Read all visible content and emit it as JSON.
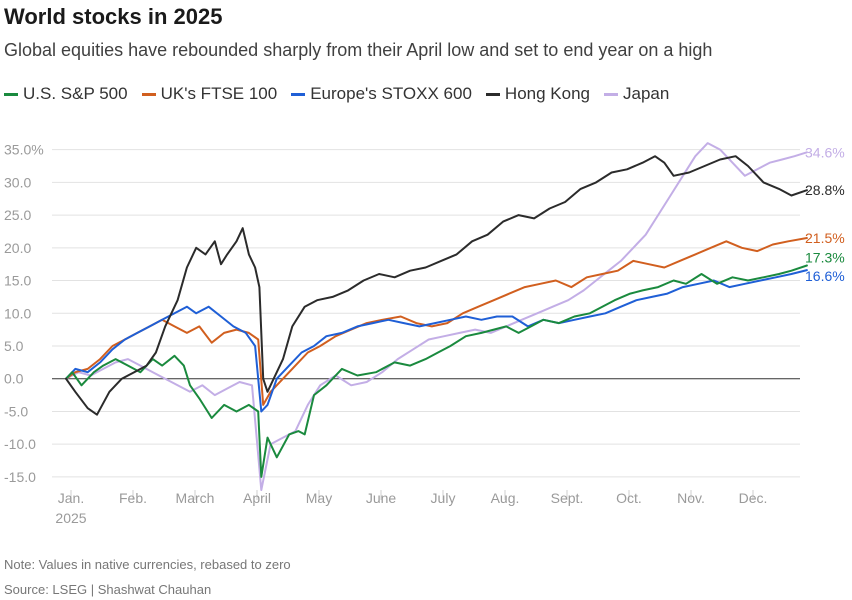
{
  "chart_data": {
    "type": "line",
    "title": "World stocks in 2025",
    "subtitle": "Global equities have rebounded sharply from their April low and set to end year on a high",
    "xlabel": "",
    "ylabel": "",
    "ylim": [
      -17,
      38
    ],
    "y_ticks": [
      -15,
      -10,
      -5,
      0,
      5,
      10,
      15,
      20,
      25,
      30,
      35
    ],
    "y_tick_labels": [
      "-15.0",
      "-10.0",
      "-5.0",
      "0.0",
      "5.0",
      "10.0",
      "15.0",
      "20.0",
      "25.0",
      "30.0",
      "35.0%"
    ],
    "xlim": [
      0,
      12
    ],
    "x_ticks": [
      0,
      1,
      2,
      3,
      4,
      5,
      6,
      7,
      8,
      9,
      10,
      11
    ],
    "x_tick_labels": [
      "Jan.",
      "Feb.",
      "March",
      "April",
      "May",
      "June",
      "July",
      "Aug.",
      "Sept.",
      "Oct.",
      "Nov.",
      "Dec."
    ],
    "x_sublabel": "2025",
    "legend_position": "top",
    "series": [
      {
        "name": "U.S. S&P 500",
        "color": "#1a8a3e",
        "end_label": "17.3%",
        "points": [
          [
            0,
            0
          ],
          [
            0.1,
            1
          ],
          [
            0.25,
            -1
          ],
          [
            0.45,
            1
          ],
          [
            0.6,
            2
          ],
          [
            0.8,
            3
          ],
          [
            1.0,
            2
          ],
          [
            1.2,
            1
          ],
          [
            1.4,
            3
          ],
          [
            1.55,
            2
          ],
          [
            1.75,
            3.5
          ],
          [
            1.9,
            2
          ],
          [
            2.0,
            -1
          ],
          [
            2.15,
            -3
          ],
          [
            2.35,
            -6
          ],
          [
            2.55,
            -4
          ],
          [
            2.75,
            -5
          ],
          [
            2.95,
            -4
          ],
          [
            3.1,
            -5
          ],
          [
            3.15,
            -15
          ],
          [
            3.25,
            -9
          ],
          [
            3.4,
            -12
          ],
          [
            3.6,
            -8.5
          ],
          [
            3.75,
            -8
          ],
          [
            3.85,
            -8.5
          ],
          [
            4.0,
            -2.5
          ],
          [
            4.2,
            -1
          ],
          [
            4.45,
            1.5
          ],
          [
            4.7,
            0.5
          ],
          [
            5.0,
            1
          ],
          [
            5.3,
            2.5
          ],
          [
            5.55,
            2
          ],
          [
            5.8,
            3
          ],
          [
            6.0,
            4
          ],
          [
            6.2,
            5
          ],
          [
            6.45,
            6.5
          ],
          [
            6.7,
            7
          ],
          [
            6.9,
            7.5
          ],
          [
            7.1,
            8
          ],
          [
            7.3,
            7
          ],
          [
            7.5,
            8
          ],
          [
            7.7,
            9
          ],
          [
            7.95,
            8.5
          ],
          [
            8.2,
            9.5
          ],
          [
            8.45,
            10
          ],
          [
            8.65,
            11
          ],
          [
            8.85,
            12
          ],
          [
            9.1,
            13
          ],
          [
            9.3,
            13.5
          ],
          [
            9.55,
            14
          ],
          [
            9.8,
            15
          ],
          [
            10.0,
            14.5
          ],
          [
            10.25,
            16
          ],
          [
            10.5,
            14.5
          ],
          [
            10.75,
            15.5
          ],
          [
            11.0,
            15
          ],
          [
            11.25,
            15.5
          ],
          [
            11.5,
            16
          ],
          [
            11.7,
            16.5
          ],
          [
            11.95,
            17.3
          ]
        ]
      },
      {
        "name": "UK's FTSE 100",
        "color": "#d15f1f",
        "end_label": "21.5%",
        "points": [
          [
            0,
            0
          ],
          [
            0.15,
            1
          ],
          [
            0.35,
            1.5
          ],
          [
            0.55,
            3
          ],
          [
            0.75,
            5
          ],
          [
            0.95,
            6
          ],
          [
            1.15,
            7
          ],
          [
            1.35,
            8
          ],
          [
            1.55,
            9
          ],
          [
            1.75,
            8
          ],
          [
            1.95,
            7
          ],
          [
            2.15,
            8
          ],
          [
            2.35,
            5.5
          ],
          [
            2.55,
            7
          ],
          [
            2.75,
            7.5
          ],
          [
            2.95,
            7
          ],
          [
            3.1,
            6
          ],
          [
            3.18,
            -4
          ],
          [
            3.3,
            -2
          ],
          [
            3.5,
            0
          ],
          [
            3.7,
            2
          ],
          [
            3.9,
            4
          ],
          [
            4.1,
            5
          ],
          [
            4.35,
            6.5
          ],
          [
            4.6,
            7.5
          ],
          [
            4.85,
            8.5
          ],
          [
            5.1,
            9
          ],
          [
            5.4,
            9.5
          ],
          [
            5.65,
            8.5
          ],
          [
            5.9,
            8
          ],
          [
            6.15,
            8.5
          ],
          [
            6.4,
            10
          ],
          [
            6.65,
            11
          ],
          [
            6.9,
            12
          ],
          [
            7.15,
            13
          ],
          [
            7.4,
            14
          ],
          [
            7.65,
            14.5
          ],
          [
            7.9,
            15
          ],
          [
            8.15,
            14
          ],
          [
            8.4,
            15.5
          ],
          [
            8.65,
            16
          ],
          [
            8.9,
            16.5
          ],
          [
            9.15,
            18
          ],
          [
            9.4,
            17.5
          ],
          [
            9.65,
            17
          ],
          [
            9.9,
            18
          ],
          [
            10.15,
            19
          ],
          [
            10.4,
            20
          ],
          [
            10.65,
            21
          ],
          [
            10.9,
            20
          ],
          [
            11.15,
            19.5
          ],
          [
            11.4,
            20.5
          ],
          [
            11.65,
            21
          ],
          [
            11.95,
            21.5
          ]
        ]
      },
      {
        "name": "Europe's STOXX 600",
        "color": "#1f5fd6",
        "end_label": "16.6%",
        "points": [
          [
            0,
            0
          ],
          [
            0.15,
            1.5
          ],
          [
            0.35,
            1
          ],
          [
            0.55,
            2.5
          ],
          [
            0.75,
            4.5
          ],
          [
            0.95,
            6
          ],
          [
            1.15,
            7
          ],
          [
            1.35,
            8
          ],
          [
            1.55,
            9
          ],
          [
            1.75,
            10
          ],
          [
            1.95,
            11
          ],
          [
            2.1,
            10
          ],
          [
            2.3,
            11
          ],
          [
            2.5,
            9.5
          ],
          [
            2.7,
            8
          ],
          [
            2.9,
            7
          ],
          [
            3.05,
            5
          ],
          [
            3.15,
            -5
          ],
          [
            3.25,
            -4
          ],
          [
            3.4,
            0
          ],
          [
            3.6,
            2
          ],
          [
            3.8,
            4
          ],
          [
            4.0,
            5
          ],
          [
            4.2,
            6.5
          ],
          [
            4.45,
            7
          ],
          [
            4.7,
            8
          ],
          [
            4.95,
            8.5
          ],
          [
            5.2,
            9
          ],
          [
            5.45,
            8.5
          ],
          [
            5.7,
            8
          ],
          [
            5.95,
            8.5
          ],
          [
            6.2,
            9
          ],
          [
            6.45,
            9.5
          ],
          [
            6.7,
            9
          ],
          [
            6.95,
            9.5
          ],
          [
            7.2,
            9.5
          ],
          [
            7.45,
            8
          ],
          [
            7.7,
            9
          ],
          [
            7.95,
            8.5
          ],
          [
            8.2,
            9
          ],
          [
            8.45,
            9.5
          ],
          [
            8.7,
            10
          ],
          [
            8.95,
            11
          ],
          [
            9.2,
            12
          ],
          [
            9.45,
            12.5
          ],
          [
            9.7,
            13
          ],
          [
            9.95,
            14
          ],
          [
            10.2,
            14.5
          ],
          [
            10.45,
            15
          ],
          [
            10.7,
            14
          ],
          [
            10.95,
            14.5
          ],
          [
            11.2,
            15
          ],
          [
            11.45,
            15.5
          ],
          [
            11.7,
            16
          ],
          [
            11.95,
            16.6
          ]
        ]
      },
      {
        "name": "Hong Kong",
        "color": "#2b2b2b",
        "end_label": "28.8%",
        "points": [
          [
            0,
            0
          ],
          [
            0.15,
            -2
          ],
          [
            0.35,
            -4.5
          ],
          [
            0.5,
            -5.5
          ],
          [
            0.7,
            -2
          ],
          [
            0.9,
            0
          ],
          [
            1.1,
            1
          ],
          [
            1.3,
            2
          ],
          [
            1.45,
            4
          ],
          [
            1.6,
            8
          ],
          [
            1.8,
            12
          ],
          [
            1.95,
            17
          ],
          [
            2.1,
            20
          ],
          [
            2.25,
            19
          ],
          [
            2.4,
            21
          ],
          [
            2.5,
            17.5
          ],
          [
            2.6,
            19
          ],
          [
            2.75,
            21
          ],
          [
            2.85,
            23
          ],
          [
            2.95,
            19
          ],
          [
            3.05,
            17
          ],
          [
            3.12,
            14
          ],
          [
            3.18,
            0
          ],
          [
            3.25,
            -2
          ],
          [
            3.35,
            0
          ],
          [
            3.5,
            3
          ],
          [
            3.65,
            8
          ],
          [
            3.85,
            11
          ],
          [
            4.05,
            12
          ],
          [
            4.3,
            12.5
          ],
          [
            4.55,
            13.5
          ],
          [
            4.8,
            15
          ],
          [
            5.05,
            16
          ],
          [
            5.3,
            15.5
          ],
          [
            5.55,
            16.5
          ],
          [
            5.8,
            17
          ],
          [
            6.05,
            18
          ],
          [
            6.3,
            19
          ],
          [
            6.55,
            21
          ],
          [
            6.8,
            22
          ],
          [
            7.05,
            24
          ],
          [
            7.3,
            25
          ],
          [
            7.55,
            24.5
          ],
          [
            7.8,
            26
          ],
          [
            8.05,
            27
          ],
          [
            8.3,
            29
          ],
          [
            8.55,
            30
          ],
          [
            8.8,
            31.5
          ],
          [
            9.05,
            32
          ],
          [
            9.3,
            33
          ],
          [
            9.5,
            34
          ],
          [
            9.65,
            33
          ],
          [
            9.8,
            31
          ],
          [
            10.05,
            31.5
          ],
          [
            10.3,
            32.5
          ],
          [
            10.55,
            33.5
          ],
          [
            10.8,
            34
          ],
          [
            11.0,
            32.5
          ],
          [
            11.25,
            30
          ],
          [
            11.5,
            29
          ],
          [
            11.7,
            28
          ],
          [
            11.95,
            28.8
          ]
        ]
      },
      {
        "name": "Japan",
        "color": "#c3aee6",
        "end_label": "34.6%",
        "points": [
          [
            0,
            0
          ],
          [
            0.2,
            1
          ],
          [
            0.4,
            0.5
          ],
          [
            0.6,
            1.5
          ],
          [
            0.8,
            2.5
          ],
          [
            1.0,
            3
          ],
          [
            1.2,
            2
          ],
          [
            1.4,
            1
          ],
          [
            1.6,
            0
          ],
          [
            1.8,
            -1
          ],
          [
            2.0,
            -2
          ],
          [
            2.2,
            -1
          ],
          [
            2.4,
            -2.5
          ],
          [
            2.6,
            -1.5
          ],
          [
            2.8,
            -0.5
          ],
          [
            3.0,
            -1
          ],
          [
            3.15,
            -17
          ],
          [
            3.3,
            -10
          ],
          [
            3.5,
            -9
          ],
          [
            3.7,
            -8
          ],
          [
            3.9,
            -4
          ],
          [
            4.1,
            -1
          ],
          [
            4.35,
            0.5
          ],
          [
            4.6,
            -1
          ],
          [
            4.85,
            -0.5
          ],
          [
            5.1,
            1
          ],
          [
            5.35,
            3
          ],
          [
            5.6,
            4.5
          ],
          [
            5.85,
            6
          ],
          [
            6.1,
            6.5
          ],
          [
            6.35,
            7
          ],
          [
            6.6,
            7.5
          ],
          [
            6.85,
            7
          ],
          [
            7.1,
            8
          ],
          [
            7.35,
            9
          ],
          [
            7.6,
            10
          ],
          [
            7.85,
            11
          ],
          [
            8.1,
            12
          ],
          [
            8.35,
            13.5
          ],
          [
            8.55,
            15
          ],
          [
            8.75,
            16.5
          ],
          [
            8.95,
            18
          ],
          [
            9.15,
            20
          ],
          [
            9.35,
            22
          ],
          [
            9.55,
            25
          ],
          [
            9.75,
            28
          ],
          [
            9.95,
            31
          ],
          [
            10.15,
            34
          ],
          [
            10.35,
            36
          ],
          [
            10.55,
            35
          ],
          [
            10.75,
            33
          ],
          [
            10.95,
            31
          ],
          [
            11.15,
            32
          ],
          [
            11.35,
            33
          ],
          [
            11.55,
            33.5
          ],
          [
            11.75,
            34
          ],
          [
            11.95,
            34.6
          ]
        ]
      }
    ]
  },
  "note": "Note: Values in native currencies, rebased to zero",
  "source": "Source: LSEG | Shashwat Chauhan"
}
